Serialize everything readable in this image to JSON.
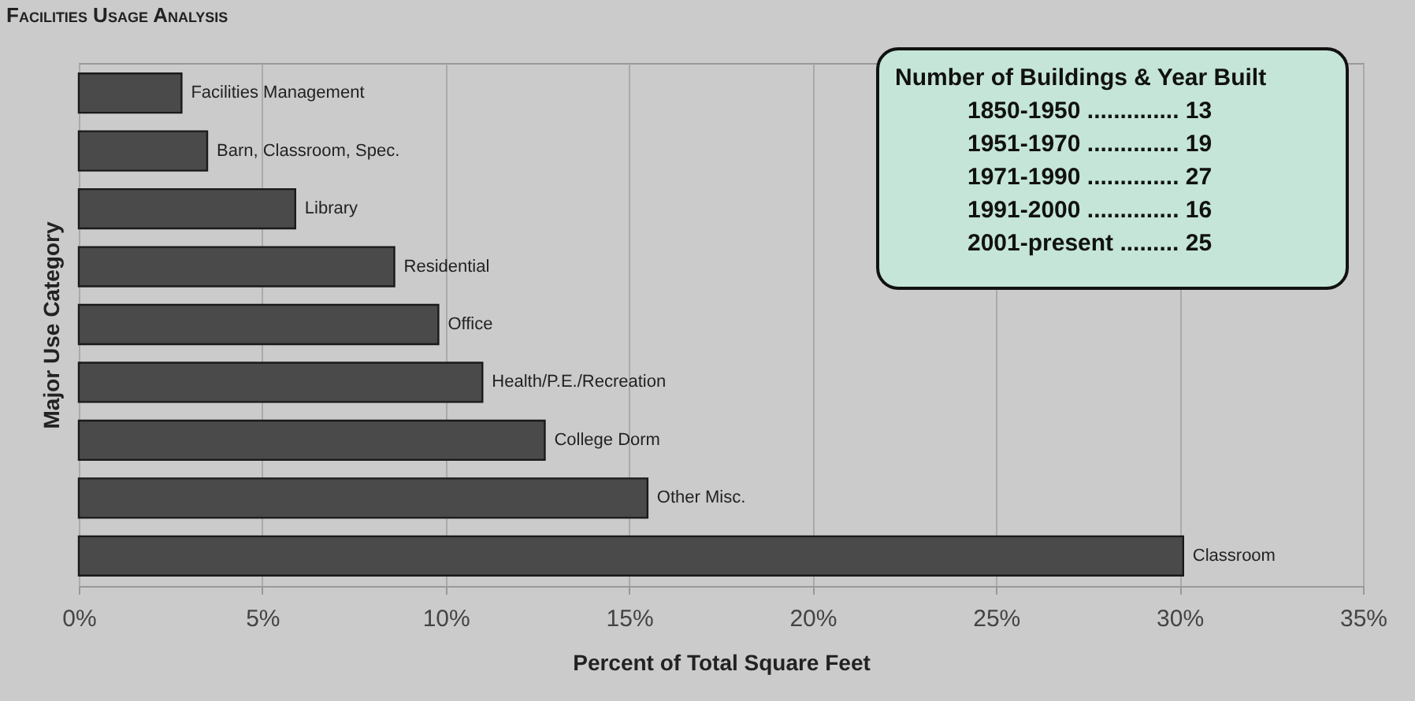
{
  "chart_data": {
    "type": "bar",
    "orientation": "horizontal",
    "title": "Facilities Usage Analysis",
    "xlabel": "Percent of Total Square Feet",
    "ylabel": "Major Use Category",
    "categories": [
      "Facilities Management",
      "Barn, Classroom, Spec.",
      "Library",
      "Residential",
      "Office",
      "Health/P.E./Recreation",
      "College Dorm",
      "Other Misc.",
      "Classroom"
    ],
    "values": [
      2.8,
      3.5,
      5.9,
      8.6,
      9.8,
      11.0,
      12.7,
      15.5,
      30.1
    ],
    "color": "#4a4a4a",
    "xlim": [
      0,
      35
    ],
    "xticks": [
      {
        "value": 0,
        "label": "0%"
      },
      {
        "value": 5,
        "label": "5%"
      },
      {
        "value": 10,
        "label": "10%"
      },
      {
        "value": 15,
        "label": "15%"
      },
      {
        "value": 20,
        "label": "20%"
      },
      {
        "value": 25,
        "label": "25%"
      },
      {
        "value": 30,
        "label": "30%"
      },
      {
        "value": 35,
        "label": "35%"
      }
    ],
    "grid": "x",
    "tick_labels": "x",
    "annotations": [
      "Number of Buildings & Year Built",
      "1850-1950 .............. 13",
      "1951-1970 .............. 19",
      "1971-1990 .............. 27",
      "1991-2000 .............. 16",
      "2001-present ......... 25"
    ]
  }
}
